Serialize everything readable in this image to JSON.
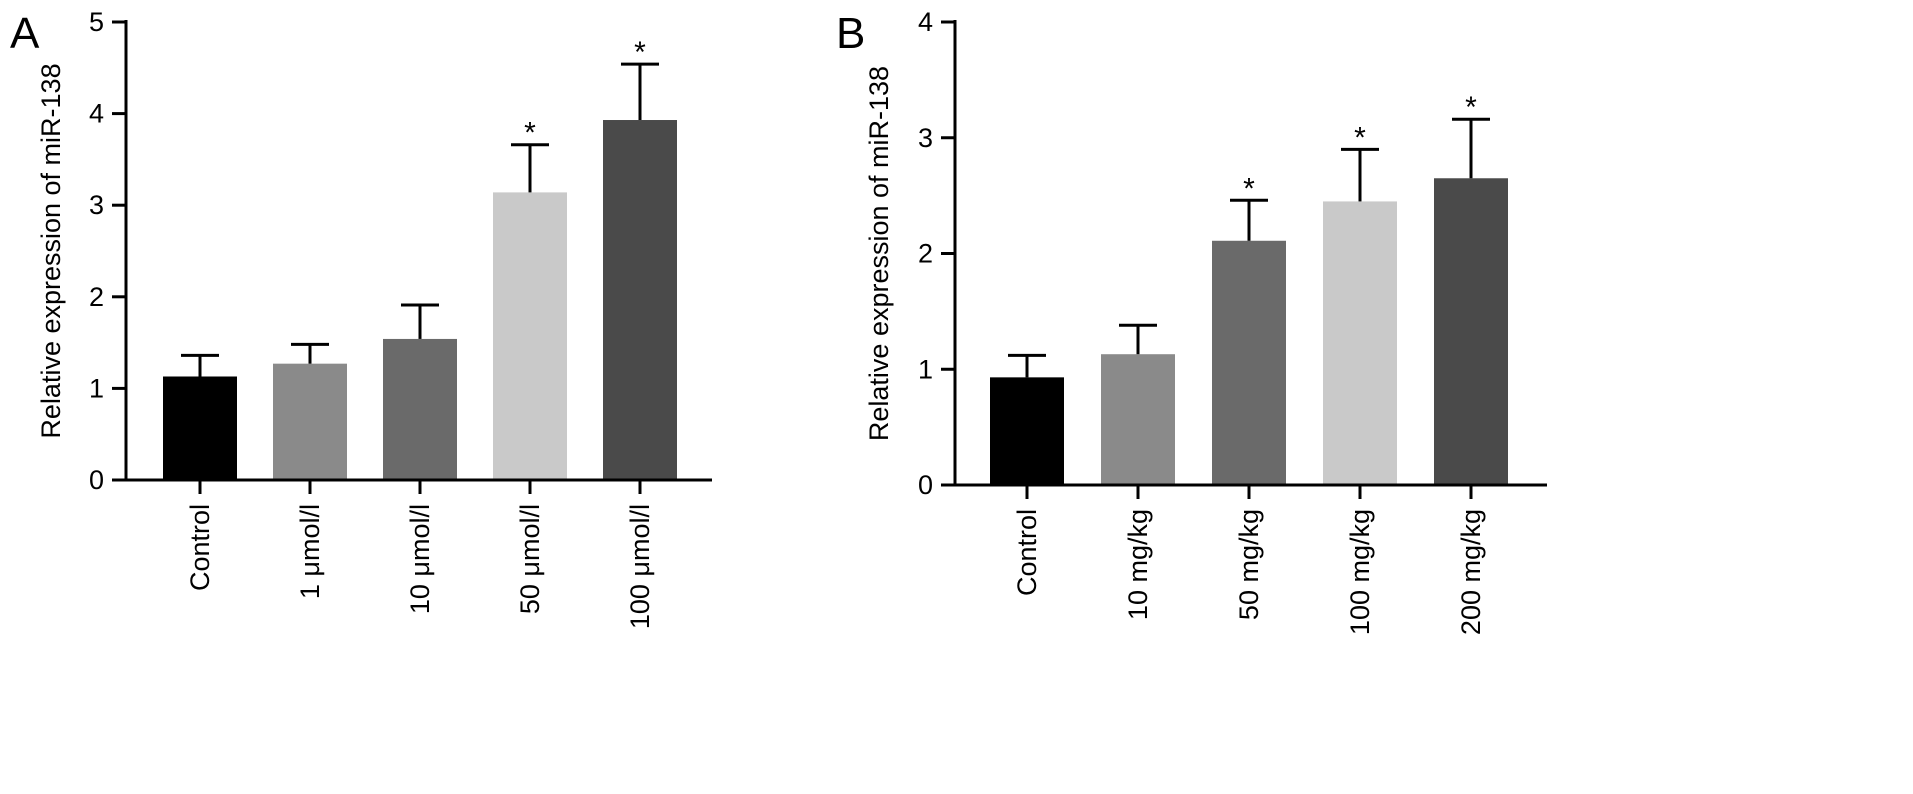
{
  "chart_data": [
    {
      "panel": "A",
      "type": "bar",
      "title": "",
      "xlabel": "",
      "ylabel": "Relative expression of miR-138",
      "ylim": [
        0,
        5
      ],
      "yticks": [
        0,
        1,
        2,
        3,
        4,
        5
      ],
      "categories": [
        "Control",
        "1 μmol/l",
        "10 μmol/l",
        "50 μmol/l",
        "100 μmol/l"
      ],
      "values": [
        1.13,
        1.27,
        1.54,
        3.14,
        3.93
      ],
      "error": [
        0.23,
        0.21,
        0.37,
        0.52,
        0.61
      ],
      "significance": [
        "",
        "",
        "",
        "*",
        "*"
      ],
      "colors": [
        "#000000",
        "#8a8a8a",
        "#6a6a6a",
        "#c9c9c9",
        "#4a4a4a"
      ]
    },
    {
      "panel": "B",
      "type": "bar",
      "title": "",
      "xlabel": "",
      "ylabel": "Relative expression of miR-138",
      "ylim": [
        0,
        4
      ],
      "yticks": [
        0,
        1,
        2,
        3,
        4
      ],
      "categories": [
        "Control",
        "10 mg/kg",
        "50 mg/kg",
        "100 mg/kg",
        "200 mg/kg"
      ],
      "values": [
        0.93,
        1.13,
        2.11,
        2.45,
        2.65
      ],
      "error": [
        0.19,
        0.25,
        0.35,
        0.45,
        0.51
      ],
      "significance": [
        "",
        "",
        "*",
        "*",
        "*"
      ],
      "colors": [
        "#000000",
        "#8a8a8a",
        "#6a6a6a",
        "#c9c9c9",
        "#4a4a4a"
      ]
    }
  ]
}
